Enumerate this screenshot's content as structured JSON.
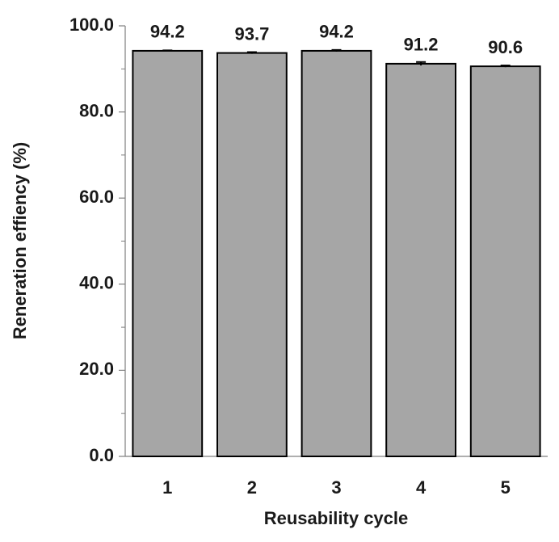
{
  "chart_data": {
    "type": "bar",
    "x_label": "Reusability cycle",
    "y_label": "Reneration effiency (%)",
    "categories": [
      "1",
      "2",
      "3",
      "4",
      "5"
    ],
    "values": [
      94.2,
      93.7,
      94.2,
      91.2,
      90.6
    ],
    "errors": [
      0.1,
      0.2,
      0.2,
      0.4,
      0.2
    ],
    "color": "#a6a6a6",
    "ylim": [
      0,
      100
    ],
    "yticks": [
      {
        "value": 0,
        "label": "0.0"
      },
      {
        "value": 20,
        "label": "20.0"
      },
      {
        "value": 40,
        "label": "40.0"
      },
      {
        "value": 60,
        "label": "60.0"
      },
      {
        "value": 80,
        "label": "80.0"
      },
      {
        "value": 100,
        "label": "100.0"
      }
    ],
    "minor_yticks": [
      10,
      30,
      50,
      70,
      90
    ],
    "grid": false
  }
}
